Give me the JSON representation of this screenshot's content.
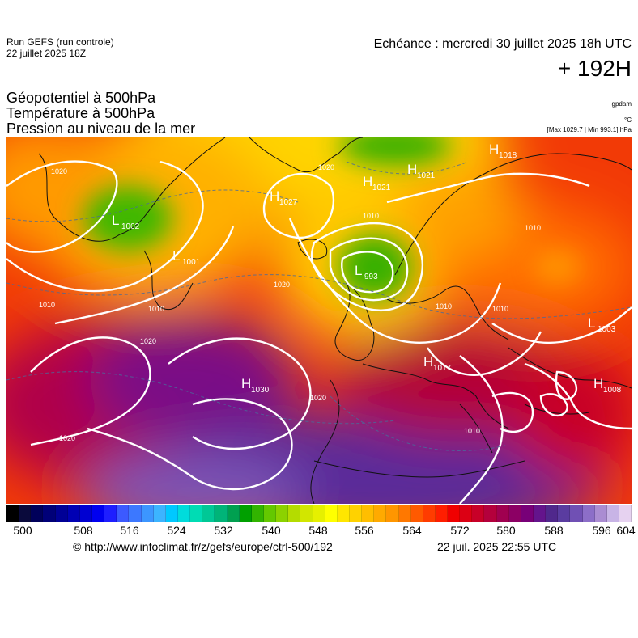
{
  "header": {
    "run_line": "Run GEFS (run controle)",
    "run_date": "22 juillet 2025 18Z",
    "valid_time": "Echéance : mercredi 30 juillet 2025 18h UTC",
    "lead": "+ 192H",
    "title_1": "Géopotentiel à 500hPa",
    "title_2": "Température à 500hPa",
    "title_3": "Pression au niveau de la mer",
    "unit_geo": "gpdam",
    "unit_temp": "°C",
    "pressure_range": "[Max 1029.7 | Min 993.1] hPa"
  },
  "pressure_centers": [
    {
      "type": "L",
      "value": "1002",
      "name": "low-greenland-west"
    },
    {
      "type": "L",
      "value": "1001",
      "name": "low-greenland-south"
    },
    {
      "type": "H",
      "value": "1027",
      "name": "high-iceland-west"
    },
    {
      "type": "H",
      "value": "1021",
      "name": "high-north"
    },
    {
      "type": "H",
      "value": "1021",
      "name": "high-norway-sea"
    },
    {
      "type": "H",
      "value": "1018",
      "name": "high-northeast"
    },
    {
      "type": "L",
      "value": "993",
      "name": "low-north-sea"
    },
    {
      "type": "H",
      "value": "1030",
      "name": "high-azores"
    },
    {
      "type": "H",
      "value": "1017",
      "name": "high-central-europe"
    },
    {
      "type": "L",
      "value": "1003",
      "name": "low-east-europe"
    },
    {
      "type": "H",
      "value": "1008",
      "name": "high-black-sea"
    }
  ],
  "isobar_labels": [
    "1020",
    "1010",
    "1020",
    "1010",
    "1020",
    "1020",
    "1010",
    "1020",
    "1010",
    "1010",
    "1010",
    "1020",
    "1010"
  ],
  "colorbar": {
    "ticks": [
      "500",
      "508",
      "516",
      "524",
      "532",
      "540",
      "548",
      "556",
      "564",
      "572",
      "580",
      "588",
      "596",
      "604"
    ],
    "colors": [
      "#000000",
      "#0a0a3c",
      "#00005a",
      "#000078",
      "#000096",
      "#0000b4",
      "#0000d2",
      "#0000f0",
      "#1e1eff",
      "#3c5aff",
      "#3c78ff",
      "#3c96ff",
      "#3cb4ff",
      "#00c8ff",
      "#00dcdc",
      "#00dcb4",
      "#00c896",
      "#00b478",
      "#00a050",
      "#00a000",
      "#32b400",
      "#64c800",
      "#8cd200",
      "#b4dc00",
      "#d2e600",
      "#e6f000",
      "#ffff00",
      "#ffe600",
      "#ffd200",
      "#ffbe00",
      "#ffaa00",
      "#ff9600",
      "#ff7800",
      "#ff5a00",
      "#ff3c00",
      "#ff1e00",
      "#f00000",
      "#dc0014",
      "#c80028",
      "#b4003c",
      "#a00050",
      "#8c0064",
      "#780078",
      "#64148c",
      "#50288c",
      "#5a3ca0",
      "#7050b4",
      "#8c6ec8",
      "#aa8cd2",
      "#c8b4e6",
      "#e6d2f0"
    ]
  },
  "footer": {
    "source": "© http://www.infoclimat.fr/z/gefs/europe/ctrl-500/192",
    "generated": "22 juil. 2025 22:55 UTC"
  }
}
